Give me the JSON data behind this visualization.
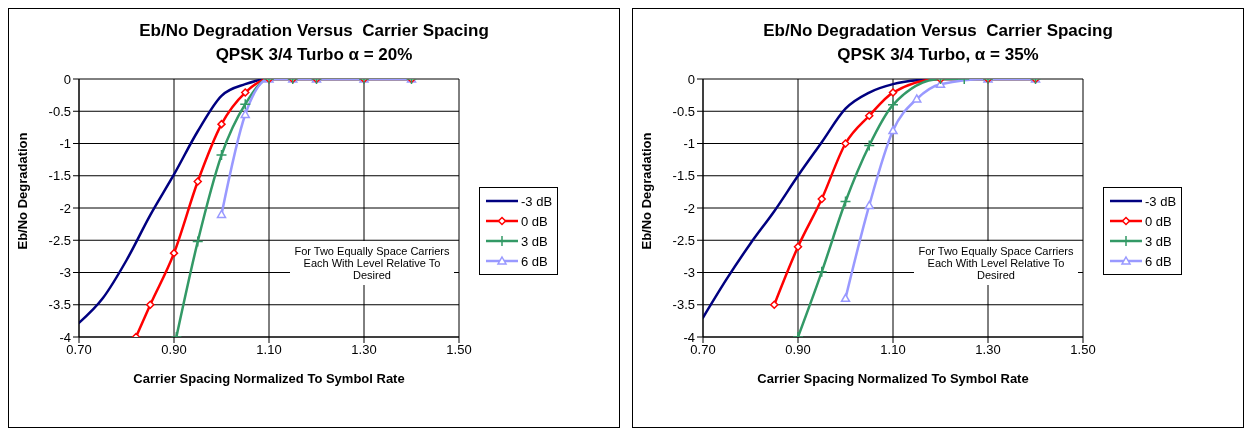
{
  "chart_data": [
    {
      "type": "line",
      "title": "Eb/No Degradation Versus  Carrier Spacing",
      "subtitle": "QPSK 3/4 Turbo α = 20%",
      "xlabel": "Carrier Spacing Normalized To Symbol Rate",
      "ylabel": "Eb/No Degradation",
      "xlim": [
        0.7,
        1.5
      ],
      "xticks": [
        {
          "value": 0.7,
          "label": "0.70"
        },
        {
          "value": 0.9,
          "label": "0.90"
        },
        {
          "value": 1.1,
          "label": "1.10"
        },
        {
          "value": 1.3,
          "label": "1.30"
        },
        {
          "value": 1.5,
          "label": "1.50"
        }
      ],
      "ylim": [
        -4,
        0
      ],
      "yticks": [
        0,
        -0.5,
        -1,
        -1.5,
        -2,
        -2.5,
        -3,
        -3.5,
        -4
      ],
      "grid": true,
      "legend": "right",
      "annotations": [
        "For Two Equally Space Carriers Each With Level Relative To Desired"
      ],
      "series": [
        {
          "name": "-3 dB",
          "color": "#000080",
          "marker": "none",
          "x": [
            0.7,
            0.75,
            0.8,
            0.85,
            0.9,
            0.95,
            1.0,
            1.05,
            1.1,
            1.15,
            1.2,
            1.3,
            1.4
          ],
          "values": [
            -3.78,
            -3.4,
            -2.81,
            -2.11,
            -1.48,
            -0.81,
            -0.26,
            -0.08,
            0,
            0,
            0,
            0,
            0
          ]
        },
        {
          "name": "0 dB",
          "color": "#ff0000",
          "marker": "diamond",
          "x": [
            0.82,
            0.85,
            0.9,
            0.95,
            1.0,
            1.05,
            1.1,
            1.15,
            1.2,
            1.3,
            1.4
          ],
          "values": [
            -4,
            -3.5,
            -2.7,
            -1.59,
            -0.7,
            -0.21,
            0,
            0,
            0,
            0,
            0
          ]
        },
        {
          "name": "3 dB",
          "color": "#339966",
          "marker": "cross",
          "x": [
            0.905,
            0.95,
            1.0,
            1.05,
            1.1,
            1.15,
            1.2,
            1.3,
            1.4
          ],
          "values": [
            -4,
            -2.52,
            -1.18,
            -0.39,
            0,
            0,
            0,
            0,
            0
          ]
        },
        {
          "name": "6 dB",
          "color": "#9999ff",
          "marker": "triangle",
          "x": [
            1.0,
            1.05,
            1.1,
            1.15,
            1.2,
            1.3,
            1.4
          ],
          "values": [
            -2.1,
            -0.55,
            0,
            0,
            0,
            0,
            0
          ]
        }
      ]
    },
    {
      "type": "line",
      "title": "Eb/No Degradation Versus  Carrier Spacing",
      "subtitle": "QPSK 3/4 Turbo, α = 35%",
      "xlabel": "Carrier Spacing Normalized To Symbol Rate",
      "ylabel": "Eb/No Degradation",
      "xlim": [
        0.7,
        1.5
      ],
      "xticks": [
        {
          "value": 0.7,
          "label": "0.70"
        },
        {
          "value": 0.9,
          "label": "0.90"
        },
        {
          "value": 1.1,
          "label": "1.10"
        },
        {
          "value": 1.3,
          "label": "1.30"
        },
        {
          "value": 1.5,
          "label": "1.50"
        }
      ],
      "ylim": [
        -4,
        0
      ],
      "yticks": [
        0,
        -0.5,
        -1,
        -1.5,
        -2,
        -2.5,
        -3,
        -3.5,
        -4
      ],
      "grid": true,
      "legend": "right",
      "annotations": [
        "For Two Equally Space Carriers Each With Level Relative To Desired"
      ],
      "series": [
        {
          "name": "-3 dB",
          "color": "#000080",
          "marker": "none",
          "x": [
            0.7,
            0.75,
            0.8,
            0.85,
            0.9,
            0.95,
            1.0,
            1.05,
            1.1,
            1.15,
            1.2,
            1.3,
            1.4
          ],
          "values": [
            -3.7,
            -3.1,
            -2.55,
            -2.05,
            -1.5,
            -0.98,
            -0.46,
            -0.21,
            -0.08,
            -0.02,
            0,
            0,
            0
          ]
        },
        {
          "name": "0 dB",
          "color": "#ff0000",
          "marker": "diamond",
          "x": [
            0.85,
            0.9,
            0.95,
            1.0,
            1.05,
            1.1,
            1.2,
            1.3,
            1.4
          ],
          "values": [
            -3.5,
            -2.6,
            -1.86,
            -1.0,
            -0.57,
            -0.21,
            0,
            0,
            0
          ]
        },
        {
          "name": "3 dB",
          "color": "#339966",
          "marker": "cross",
          "x": [
            0.9,
            0.95,
            1.0,
            1.05,
            1.1,
            1.2,
            1.25,
            1.3,
            1.4
          ],
          "values": [
            -4,
            -2.99,
            -1.9,
            -1.03,
            -0.4,
            0,
            0,
            0,
            0
          ]
        },
        {
          "name": "6 dB",
          "color": "#9999ff",
          "marker": "triangle",
          "x": [
            1.0,
            1.05,
            1.1,
            1.15,
            1.2,
            1.3,
            1.4
          ],
          "values": [
            -3.4,
            -1.96,
            -0.8,
            -0.31,
            -0.08,
            0,
            0
          ]
        }
      ]
    }
  ]
}
